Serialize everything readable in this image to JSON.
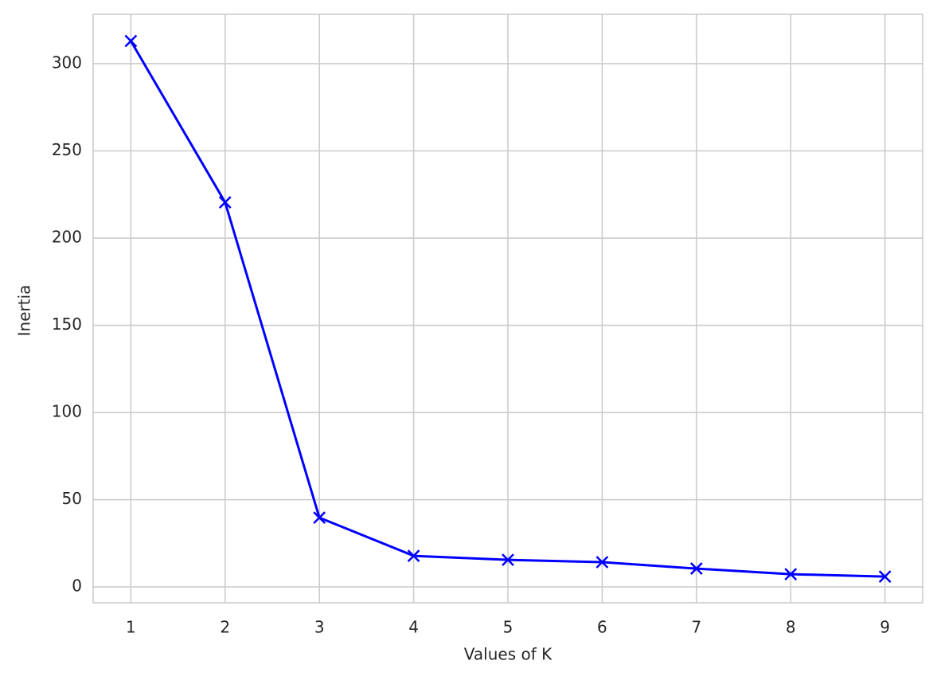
{
  "chart_data": {
    "type": "line",
    "x_label": "Values of K",
    "y_label": "Inertia",
    "x": [
      1,
      2,
      3,
      4,
      5,
      6,
      7,
      8,
      9
    ],
    "values": [
      313,
      220.5,
      39.7,
      17.8,
      15.5,
      14.2,
      10.5,
      7.3,
      5.9
    ],
    "color": "#0000ff",
    "marker": "x",
    "xlim": [
      0.6,
      9.4
    ],
    "xticks": [
      1,
      2,
      3,
      4,
      5,
      6,
      7,
      8,
      9
    ],
    "ylim": [
      -9.1,
      328.3
    ],
    "yticks": [
      0,
      50,
      100,
      150,
      200,
      250,
      300
    ],
    "grid": true
  }
}
